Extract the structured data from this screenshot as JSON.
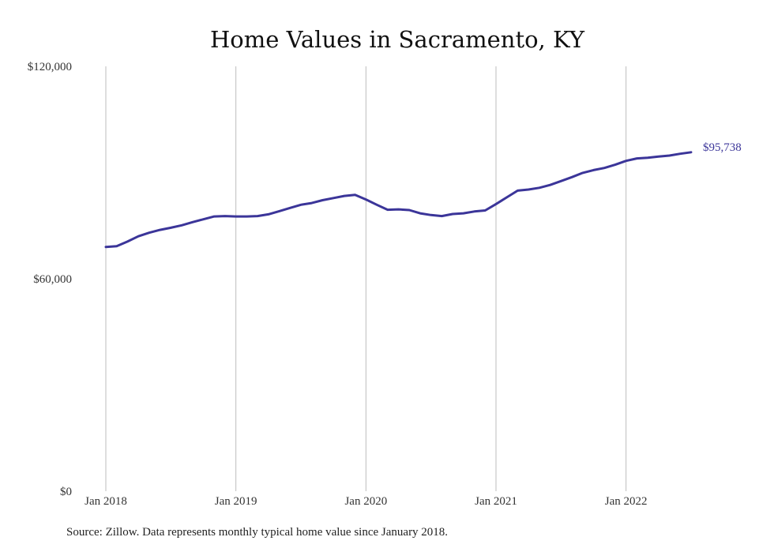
{
  "source_note": "Source: Zillow. Data represents monthly typical home value since January 2018.",
  "colors": {
    "line": "#3b3599",
    "grid": "#bdbdbd",
    "text": "#333333"
  },
  "chart_data": {
    "type": "line",
    "title": "Home Values in Sacramento, KY",
    "xlabel": "",
    "ylabel": "",
    "ylim": [
      0,
      120000
    ],
    "yticks": [
      0,
      60000,
      120000
    ],
    "ytick_labels": [
      "$0",
      "$60,000",
      "$120,000"
    ],
    "xticks": [
      "2018-01",
      "2019-01",
      "2020-01",
      "2021-01",
      "2022-01"
    ],
    "xtick_labels": [
      "Jan 2018",
      "Jan 2019",
      "Jan 2020",
      "Jan 2021",
      "Jan 2022"
    ],
    "grid": "vertical-at-xticks",
    "end_label": "$95,738",
    "series": [
      {
        "x": [
          "2018-01",
          "2018-02",
          "2018-03",
          "2018-04",
          "2018-05",
          "2018-06",
          "2018-07",
          "2018-08",
          "2018-09",
          "2018-10",
          "2018-11",
          "2018-12",
          "2019-01",
          "2019-02",
          "2019-03",
          "2019-04",
          "2019-05",
          "2019-06",
          "2019-07",
          "2019-08",
          "2019-09",
          "2019-10",
          "2019-11",
          "2019-12",
          "2020-01",
          "2020-02",
          "2020-03",
          "2020-04",
          "2020-05",
          "2020-06",
          "2020-07",
          "2020-08",
          "2020-09",
          "2020-10",
          "2020-11",
          "2020-12",
          "2021-01",
          "2021-02",
          "2021-03",
          "2021-04",
          "2021-05",
          "2021-06",
          "2021-07",
          "2021-08",
          "2021-09",
          "2021-10",
          "2021-11",
          "2021-12",
          "2022-01",
          "2022-02",
          "2022-03",
          "2022-04",
          "2022-05",
          "2022-06",
          "2022-07"
        ],
        "values": [
          69000,
          69200,
          70500,
          72000,
          73000,
          73800,
          74400,
          75100,
          76000,
          76800,
          77600,
          77700,
          77600,
          77600,
          77700,
          78200,
          79100,
          80000,
          80900,
          81400,
          82200,
          82800,
          83400,
          83700,
          82400,
          80900,
          79500,
          79600,
          79400,
          78500,
          78000,
          77700,
          78300,
          78500,
          79000,
          79300,
          81100,
          83000,
          84900,
          85200,
          85700,
          86500,
          87600,
          88700,
          89900,
          90700,
          91300,
          92200,
          93300,
          94000,
          94200,
          94500,
          94800,
          95300,
          95738
        ]
      }
    ]
  }
}
